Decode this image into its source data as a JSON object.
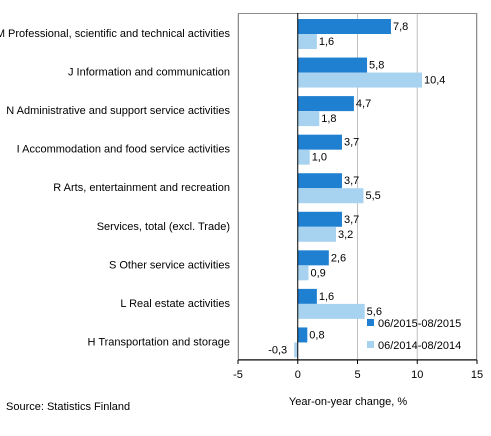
{
  "chart_data": {
    "type": "bar",
    "orientation": "horizontal",
    "categories": [
      "M Professional, scientific and technical activities",
      "J Information and communication",
      "N Administrative and support service activities",
      "I Accommodation and food service activities",
      "R Arts, entertainment and recreation",
      "Services, total (excl. Trade)",
      "S Other service activities",
      "L Real estate activities",
      "H Transportation and storage"
    ],
    "series": [
      {
        "name": "06/2015-08/2015",
        "color": "#1f7fd0",
        "values": [
          7.8,
          5.8,
          4.7,
          3.7,
          3.7,
          3.7,
          2.6,
          1.6,
          0.8
        ],
        "labels": [
          "7,8",
          "5,8",
          "4,7",
          "3,7",
          "3,7",
          "3,7",
          "2,6",
          "1,6",
          "0,8"
        ]
      },
      {
        "name": "06/2014-08/2014",
        "color": "#a8d3f0",
        "values": [
          1.6,
          10.4,
          1.8,
          1.0,
          5.5,
          3.2,
          0.9,
          5.6,
          -0.3
        ],
        "labels": [
          "1,6",
          "10,4",
          "1,8",
          "1,0",
          "5,5",
          "3,2",
          "0,9",
          "5,6",
          "-0,3"
        ]
      }
    ],
    "xlim": [
      -5,
      15
    ],
    "xticks": [
      "-5",
      "0",
      "5",
      "10",
      "15"
    ],
    "xticks_values": [
      -5,
      0,
      5,
      10,
      15
    ],
    "xlabel": "Year-on-year change, %",
    "grid": true,
    "legend_position": "bottom-right"
  },
  "source": "Source:  Statistics Finland"
}
